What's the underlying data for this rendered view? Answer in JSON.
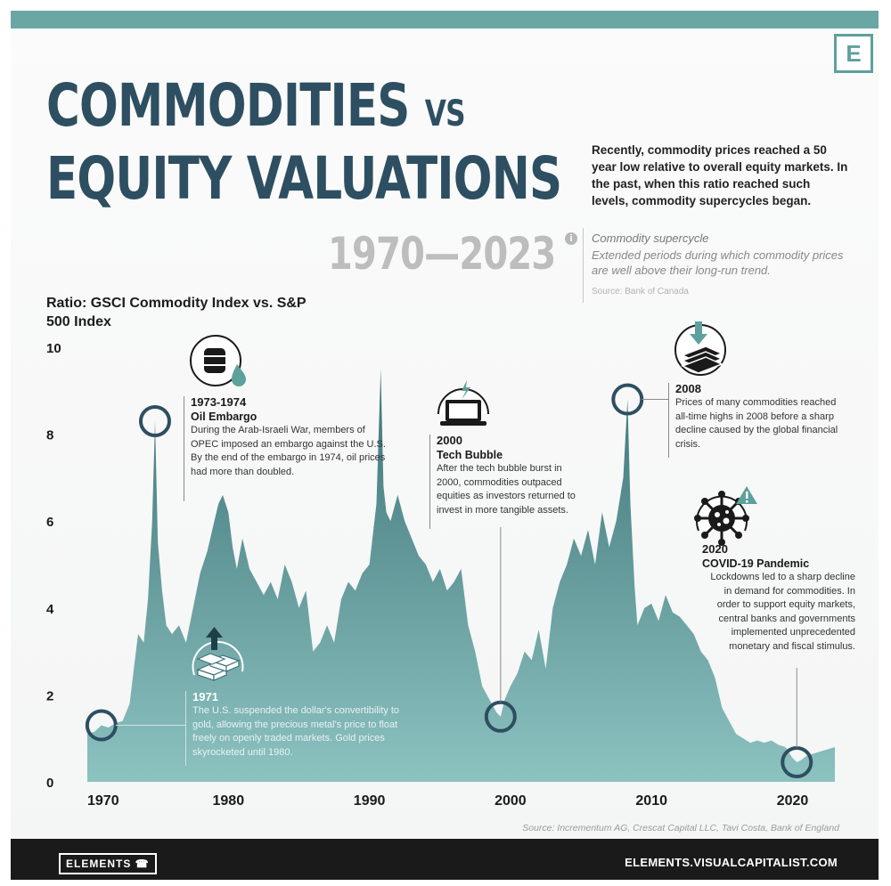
{
  "brand_mark": "E",
  "title": {
    "line1": "COMMODITIES",
    "vs": "VS",
    "line2": "EQUITY VALUATIONS",
    "years": "1970—2023"
  },
  "intro": "Recently, commodity prices reached a 50 year low relative to overall equity markets. In the past, when this ratio reached such levels, commodity supercycles began.",
  "definition": {
    "icon": "info-icon",
    "icon_glyph": "i",
    "title": "Commodity supercycle",
    "text": "Extended periods during which commodity prices are well above their long-run trend.",
    "source": "Source: Bank of Canada"
  },
  "annotations": [
    {
      "id": "oil",
      "icon": "oil-barrel-icon",
      "year": "1973-1974",
      "title": "Oil Embargo",
      "text": "During the Arab-Israeli War, members of OPEC imposed an embargo against the U.S. By the end of the embargo in 1974, oil prices had more than doubled."
    },
    {
      "id": "gold",
      "icon": "gold-bars-icon",
      "year": "1971",
      "title": "",
      "text": "The U.S. suspended the dollar's convertibility to gold, allowing the precious metal's price to float freely on openly traded markets. Gold prices skyrocketed until 1980."
    },
    {
      "id": "tech",
      "icon": "laptop-icon",
      "year": "2000",
      "title": "Tech Bubble",
      "text": "After the tech bubble burst in 2000, commodities outpaced equities as investors returned to invest in more tangible assets."
    },
    {
      "id": "gfc",
      "icon": "falling-cash-icon",
      "year": "2008",
      "title": "",
      "text": "Prices of many commodities reached all-time highs in 2008 before a sharp decline caused by the global financial crisis."
    },
    {
      "id": "covid",
      "icon": "virus-icon",
      "year": "2020",
      "title": "COVID-19 Pandemic",
      "text": "Lockdowns led to a sharp decline in demand for commodities. In order to support equity markets, central banks and governments implemented unprecedented monetary and fiscal stimulus."
    }
  ],
  "source": "Source: Incrementum AG, Crescat Capital LLC, Tavi Costa, Bank of England",
  "footer": {
    "brand": "ELEMENTS",
    "site": "ELEMENTS.VISUALCAPITALIST.COM"
  },
  "colors": {
    "accent": "#5ea09c",
    "title": "#2d4f61",
    "area_top": "#3f7478",
    "area_bottom": "#8cc2c0",
    "marker": "#2d4f61"
  },
  "chart_data": {
    "type": "area",
    "title": "",
    "ylabel": "Ratio: GSCI Commodity Index vs. S&P 500 Index",
    "xlabel": "",
    "xlim": [
      1970,
      2023
    ],
    "ylim": [
      0,
      10
    ],
    "xticks": [
      1970,
      1980,
      1990,
      2000,
      2010,
      2020
    ],
    "yticks": [
      0,
      2,
      4,
      6,
      8,
      10
    ],
    "grid": false,
    "x": [
      1970,
      1970.5,
      1971,
      1971.5,
      1972,
      1972.5,
      1973,
      1973.3,
      1973.6,
      1974,
      1974.3,
      1974.6,
      1974.8,
      1975,
      1975.3,
      1975.6,
      1976,
      1976.5,
      1977,
      1977.5,
      1978,
      1978.5,
      1979,
      1979.3,
      1979.6,
      1980,
      1980.3,
      1980.6,
      1981,
      1981.5,
      1982,
      1982.5,
      1983,
      1983.5,
      1984,
      1984.5,
      1985,
      1985.5,
      1986,
      1986.5,
      1987,
      1987.5,
      1988,
      1988.5,
      1989,
      1989.5,
      1990,
      1990.5,
      1990.8,
      1991,
      1991.2,
      1991.5,
      1992,
      1992.5,
      1993,
      1993.5,
      1994,
      1994.5,
      1995,
      1995.5,
      1996,
      1996.5,
      1997,
      1997.5,
      1998,
      1998.5,
      1999,
      1999.3,
      1999.6,
      2000,
      2000.5,
      2001,
      2001.5,
      2002,
      2002.5,
      2003,
      2003.5,
      2004,
      2004.5,
      2005,
      2005.5,
      2006,
      2006.5,
      2007,
      2007.5,
      2008,
      2008.3,
      2008.5,
      2008.8,
      2009,
      2009.5,
      2010,
      2010.5,
      2011,
      2011.5,
      2012,
      2012.5,
      2013,
      2013.5,
      2014,
      2014.5,
      2015,
      2015.5,
      2016,
      2016.5,
      2017,
      2017.5,
      2018,
      2018.5,
      2019,
      2019.5,
      2020,
      2020.3,
      2020.6,
      2021,
      2021.5,
      2022,
      2022.5,
      2023
    ],
    "values": [
      1.1,
      1.15,
      1.3,
      1.25,
      1.35,
      1.4,
      1.8,
      2.6,
      3.4,
      3.2,
      4.2,
      6.0,
      8.3,
      5.5,
      4.4,
      3.6,
      3.4,
      3.6,
      3.2,
      4.0,
      4.8,
      5.3,
      6.0,
      6.4,
      6.6,
      6.2,
      5.4,
      4.9,
      5.6,
      4.9,
      4.6,
      4.3,
      4.6,
      4.2,
      5.0,
      4.6,
      4.0,
      4.4,
      3.0,
      3.2,
      3.6,
      3.2,
      4.2,
      4.6,
      4.4,
      4.8,
      5.0,
      6.4,
      9.5,
      6.8,
      6.2,
      6.0,
      6.6,
      6.0,
      5.6,
      5.2,
      5.0,
      4.6,
      4.9,
      4.4,
      4.6,
      4.9,
      3.6,
      3.0,
      2.2,
      1.9,
      1.6,
      1.5,
      1.9,
      2.2,
      2.5,
      3.0,
      2.8,
      3.5,
      2.6,
      4.0,
      4.6,
      5.0,
      5.6,
      5.2,
      5.8,
      5.0,
      6.2,
      5.4,
      6.0,
      7.0,
      8.8,
      6.4,
      4.5,
      3.6,
      4.0,
      4.1,
      3.7,
      4.3,
      3.9,
      3.8,
      3.6,
      3.4,
      3.0,
      2.8,
      2.4,
      1.7,
      1.4,
      1.1,
      1.0,
      0.9,
      0.95,
      0.9,
      0.95,
      0.85,
      0.8,
      0.55,
      0.45,
      0.5,
      0.6,
      0.65,
      0.7,
      0.75,
      0.8
    ]
  }
}
